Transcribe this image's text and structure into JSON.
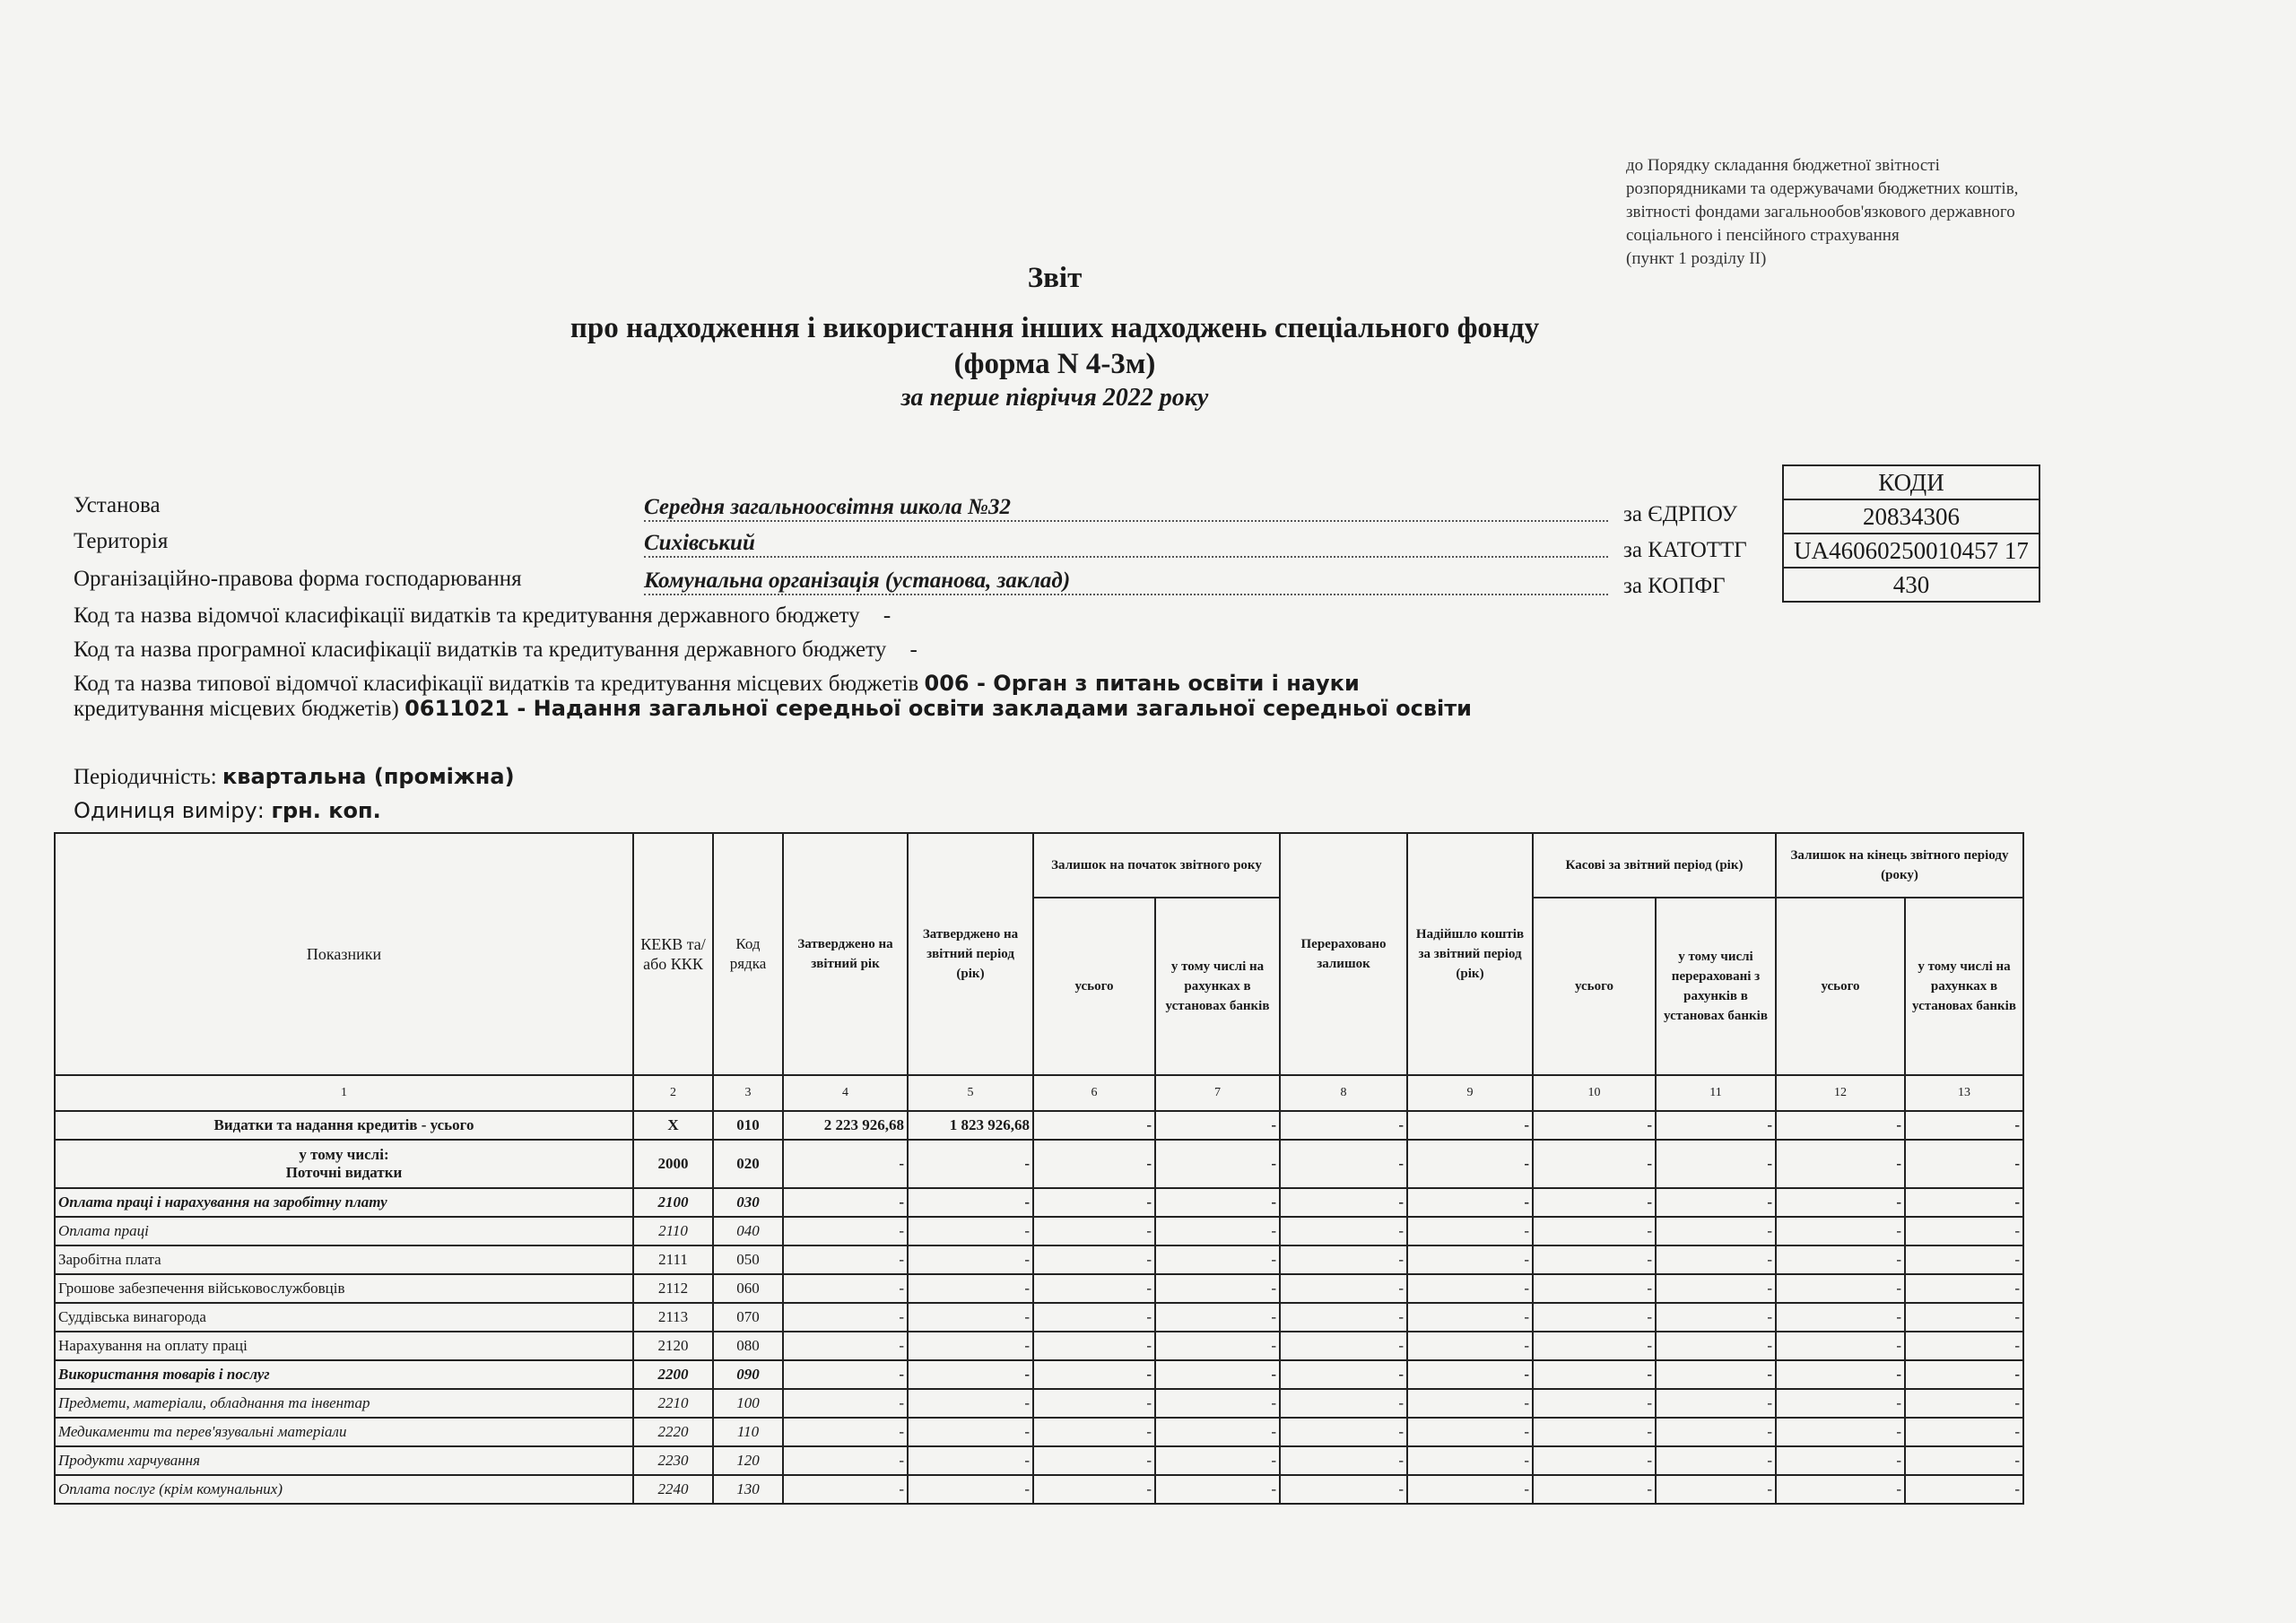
{
  "note": {
    "lines": [
      "до Порядку складання бюджетної звітності",
      "розпорядниками та одержувачами бюджетних коштів,",
      "звітності фондами загальнообов'язкового державного",
      "соціального і пенсійного страхування",
      "(пункт 1 розділу ІІ)"
    ]
  },
  "title": {
    "line1": "Звіт",
    "line2": "про надходження і використання інших надходжень спеціального фонду",
    "line3": "(форма N 4-3м)",
    "period": "за перше півріччя 2022 року"
  },
  "info": {
    "institution_label": "Установа",
    "institution": "Середня загальноосвітня школа №32",
    "territory_label": "Територія",
    "territory": "Сихівський",
    "legal_form_label": "Організаційно-правова форма господарювання",
    "legal_form": "Комунальна організація (установа, заклад)",
    "dept_class_label": "Код та назва відомчої класифікації видатків та кредитування державного бюджету",
    "dept_class": "-",
    "prog_class_label": "Код та назва програмної класифікації видатків та кредитування державного бюджету",
    "prog_class": "-",
    "typical_label": "Код та назва типової відомчої класифікації видатків та кредитування місцевих бюджетів",
    "typical": "006 - Орган з питань освіти і науки",
    "program_label": "кредитування місцевих бюджетів)",
    "program": "0611021 - Надання загальної середньої освіти закладами загальної середньої освіти",
    "periodicity_label": "Періодичність:",
    "periodicity": "квартальна (проміжна)",
    "unit_label": "Одиниця виміру:",
    "unit": "грн. коп."
  },
  "codes": {
    "header": "КОДИ",
    "edrpou_label": "за ЄДРПОУ",
    "edrpou": "20834306",
    "katottg_label": "за КАТОТТГ",
    "katottg": "UA46060250010457 17",
    "kopfg_label": "за КОПФГ",
    "kopfg": "430"
  },
  "table": {
    "headers": {
      "indicators": "Показники",
      "kekv": "КЕКВ та/або ККК",
      "code": "Код рядка",
      "approved_year": "Затверджено на звітний рік",
      "approved_period": "Затверджено на звітний період (рік)",
      "start_balance": "Залишок на початок звітного року",
      "total": "усього",
      "incl_banks": "у тому числі на рахунках в установах банків",
      "transferred": "Перераховано залишок",
      "received": "Надійшло коштів за звітний період (рік)",
      "cash": "Касові за звітний період (рік)",
      "incl_transferred": "у тому числі перераховані з рахунків в установах банків",
      "end_balance": "Залишок на кінець звітного періоду (року)"
    },
    "column_numbers": [
      "1",
      "2",
      "3",
      "4",
      "5",
      "6",
      "7",
      "8",
      "9",
      "10",
      "11",
      "12",
      "13"
    ],
    "rows": [
      {
        "name": "Видатки та надання кредитів - усього",
        "kekv": "X",
        "code": "010",
        "style": "bold center",
        "values": [
          "2 223 926,68",
          "1 823 926,68",
          "-",
          "-",
          "-",
          "-",
          "-",
          "-",
          "-",
          "-"
        ]
      },
      {
        "name": "у тому числі:",
        "name2": "Поточні видатки",
        "kekv": "2000",
        "code": "020",
        "style": "bold center",
        "values": [
          "-",
          "-",
          "-",
          "-",
          "-",
          "-",
          "-",
          "-",
          "-",
          "-"
        ]
      },
      {
        "name": "Оплата праці і нарахування на заробітну плату",
        "kekv": "2100",
        "code": "030",
        "style": "bolditalic",
        "values": [
          "-",
          "-",
          "-",
          "-",
          "-",
          "-",
          "-",
          "-",
          "-",
          "-"
        ]
      },
      {
        "name": "Оплата праці",
        "kekv": "2110",
        "code": "040",
        "style": "italic",
        "values": [
          "-",
          "-",
          "-",
          "-",
          "-",
          "-",
          "-",
          "-",
          "-",
          "-"
        ]
      },
      {
        "name": "Заробітна плата",
        "kekv": "2111",
        "code": "050",
        "style": "",
        "values": [
          "-",
          "-",
          "-",
          "-",
          "-",
          "-",
          "-",
          "-",
          "-",
          "-"
        ]
      },
      {
        "name": "Грошове  забезпечення військовослужбовців",
        "kekv": "2112",
        "code": "060",
        "style": "",
        "values": [
          "-",
          "-",
          "-",
          "-",
          "-",
          "-",
          "-",
          "-",
          "-",
          "-"
        ]
      },
      {
        "name": "Суддівська винагорода",
        "kekv": "2113",
        "code": "070",
        "style": "",
        "values": [
          "-",
          "-",
          "-",
          "-",
          "-",
          "-",
          "-",
          "-",
          "-",
          "-"
        ]
      },
      {
        "name": "Нарахування на оплату праці",
        "kekv": "2120",
        "code": "080",
        "style": "",
        "values": [
          "-",
          "-",
          "-",
          "-",
          "-",
          "-",
          "-",
          "-",
          "-",
          "-"
        ]
      },
      {
        "name": "Використання товарів і послуг",
        "kekv": "2200",
        "code": "090",
        "style": "bolditalic",
        "values": [
          "-",
          "-",
          "-",
          "-",
          "-",
          "-",
          "-",
          "-",
          "-",
          "-"
        ]
      },
      {
        "name": "Предмети, матеріали, обладнання та інвентар",
        "kekv": "2210",
        "code": "100",
        "style": "italic",
        "values": [
          "-",
          "-",
          "-",
          "-",
          "-",
          "-",
          "-",
          "-",
          "-",
          "-"
        ]
      },
      {
        "name": "Медикаменти та перев'язувальні матеріали",
        "kekv": "2220",
        "code": "110",
        "style": "italic",
        "values": [
          "-",
          "-",
          "-",
          "-",
          "-",
          "-",
          "-",
          "-",
          "-",
          "-"
        ]
      },
      {
        "name": "Продукти харчування",
        "kekv": "2230",
        "code": "120",
        "style": "italic",
        "values": [
          "-",
          "-",
          "-",
          "-",
          "-",
          "-",
          "-",
          "-",
          "-",
          "-"
        ]
      },
      {
        "name": "Оплата послуг (крім комунальних)",
        "kekv": "2240",
        "code": "130",
        "style": "italic",
        "values": [
          "-",
          "-",
          "-",
          "-",
          "-",
          "-",
          "-",
          "-",
          "-",
          "-"
        ]
      }
    ]
  }
}
